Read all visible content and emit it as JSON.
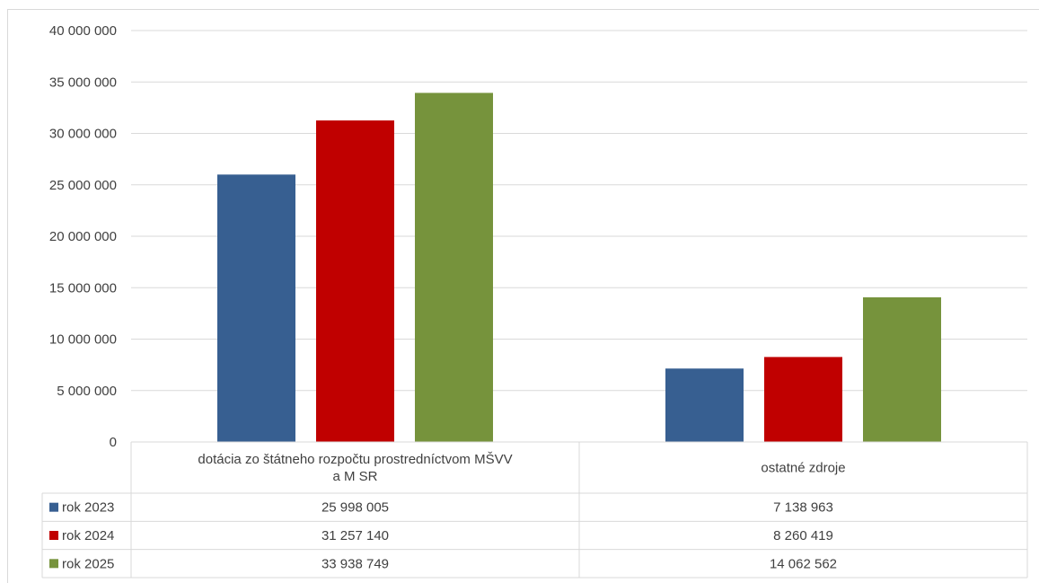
{
  "chart_data": {
    "type": "bar",
    "categories": [
      [
        "dotácia zo štátneho rozpočtu prostredníctvom MŠVV",
        "a M SR"
      ],
      [
        "ostatné zdroje"
      ]
    ],
    "series": [
      {
        "name": "rok 2023",
        "color": "#375f91",
        "values": [
          25998005,
          7138963
        ],
        "labels": [
          "25 998 005",
          "7 138 963"
        ]
      },
      {
        "name": "rok 2024",
        "color": "#c00000",
        "values": [
          31257140,
          8260419
        ],
        "labels": [
          "31 257 140",
          "8 260 419"
        ]
      },
      {
        "name": "rok 2025",
        "color": "#76933c",
        "values": [
          33938749,
          14062562
        ],
        "labels": [
          "33 938 749",
          "14 062 562"
        ]
      }
    ],
    "ylim": [
      0,
      40000000
    ],
    "yticks": [
      {
        "value": 0,
        "label": "0"
      },
      {
        "value": 5000000,
        "label": "5 000 000"
      },
      {
        "value": 10000000,
        "label": "10 000 000"
      },
      {
        "value": 15000000,
        "label": "15 000 000"
      },
      {
        "value": 20000000,
        "label": "20 000 000"
      },
      {
        "value": 25000000,
        "label": "25 000 000"
      },
      {
        "value": 30000000,
        "label": "30 000 000"
      },
      {
        "value": 35000000,
        "label": "35 000 000"
      },
      {
        "value": 40000000,
        "label": "40 000 000"
      }
    ],
    "grid": true,
    "legend": "data-table-left"
  }
}
